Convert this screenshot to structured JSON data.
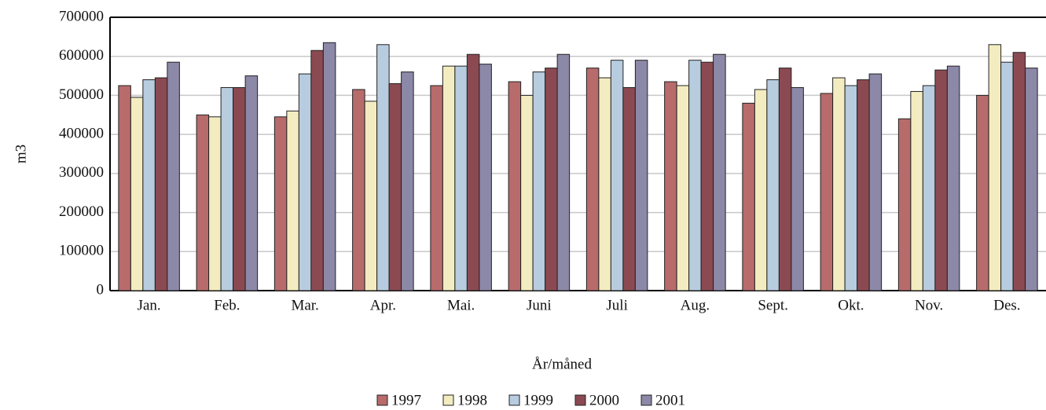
{
  "chart_data": {
    "type": "bar",
    "y_label": "m3",
    "x_label": "År/måned",
    "categories": [
      "Jan.",
      "Feb.",
      "Mar.",
      "Apr.",
      "Mai.",
      "Juni",
      "Juli",
      "Aug.",
      "Sept.",
      "Okt.",
      "Nov.",
      "Des."
    ],
    "series": [
      {
        "name": "1997",
        "color": "#b86b6b",
        "values": [
          525000,
          450000,
          445000,
          515000,
          525000,
          535000,
          570000,
          535000,
          480000,
          505000,
          440000,
          500000
        ]
      },
      {
        "name": "1998",
        "color": "#f3ecc0",
        "values": [
          495000,
          445000,
          460000,
          485000,
          575000,
          500000,
          545000,
          525000,
          515000,
          545000,
          510000,
          630000
        ]
      },
      {
        "name": "1999",
        "color": "#b8cce0",
        "values": [
          540000,
          520000,
          555000,
          630000,
          575000,
          560000,
          590000,
          590000,
          540000,
          525000,
          525000,
          585000
        ]
      },
      {
        "name": "2000",
        "color": "#8b4a52",
        "values": [
          545000,
          520000,
          615000,
          530000,
          605000,
          570000,
          520000,
          585000,
          570000,
          540000,
          565000,
          610000
        ]
      },
      {
        "name": "2001",
        "color": "#8c88a8",
        "values": [
          585000,
          550000,
          635000,
          560000,
          580000,
          605000,
          590000,
          605000,
          520000,
          555000,
          575000,
          570000
        ]
      }
    ],
    "ylim": [
      0,
      700000
    ],
    "yticks": [
      0,
      100000,
      200000,
      300000,
      400000,
      500000,
      600000,
      700000
    ],
    "grid": true
  }
}
